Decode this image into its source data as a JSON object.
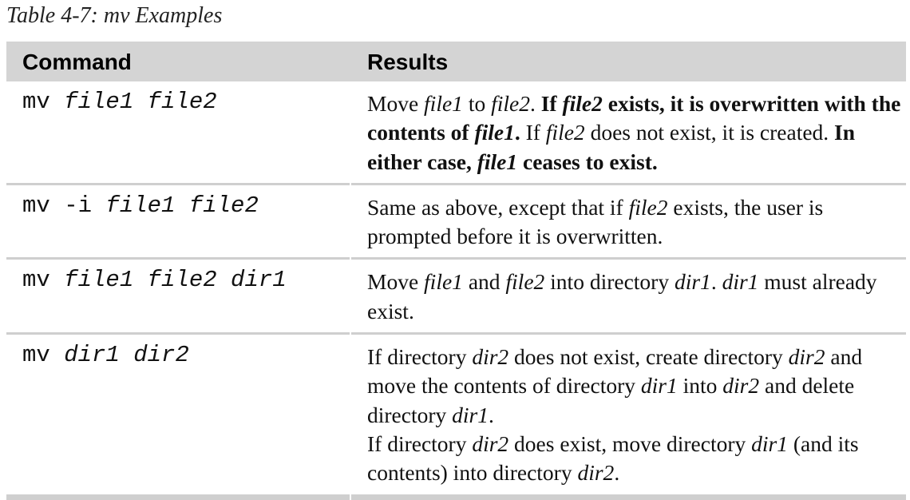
{
  "caption": "Table 4-7: mv Examples",
  "headers": {
    "command": "Command",
    "results": "Results"
  },
  "rows": [
    {
      "cmd_prefix": "mv ",
      "cmd_args": "file1 file2",
      "result": [
        {
          "t": "Move "
        },
        {
          "t": "file1",
          "i": true
        },
        {
          "t": " to "
        },
        {
          "t": "file2",
          "i": true
        },
        {
          "t": ". "
        },
        {
          "t": "If ",
          "b": true
        },
        {
          "t": "file2",
          "b": true,
          "i": true
        },
        {
          "t": " exists, it is overwritten with the contents of ",
          "b": true
        },
        {
          "t": "file1",
          "b": true,
          "i": true
        },
        {
          "t": ".",
          "b": true
        },
        {
          "t": " If "
        },
        {
          "t": "file2",
          "i": true
        },
        {
          "t": " does not exist, it is created. "
        },
        {
          "t": "In either case, ",
          "b": true
        },
        {
          "t": "file1",
          "b": true,
          "i": true
        },
        {
          "t": " ceases to exist.",
          "b": true
        }
      ]
    },
    {
      "cmd_prefix": "mv -i ",
      "cmd_args": "file1 file2",
      "result": [
        {
          "t": "Same as above, except that if "
        },
        {
          "t": "file2",
          "i": true
        },
        {
          "t": " exists, the user is prompted before it is overwritten."
        }
      ]
    },
    {
      "cmd_prefix": "mv ",
      "cmd_args": "file1 file2 dir1",
      "result": [
        {
          "t": "Move "
        },
        {
          "t": "file1",
          "i": true
        },
        {
          "t": " and "
        },
        {
          "t": "file2",
          "i": true
        },
        {
          "t": " into directory "
        },
        {
          "t": "dir1",
          "i": true
        },
        {
          "t": ". "
        },
        {
          "t": "dir1",
          "i": true
        },
        {
          "t": " must already exist."
        }
      ]
    },
    {
      "cmd_prefix": "mv ",
      "cmd_args": "dir1 dir2",
      "result": [
        {
          "t": "If directory "
        },
        {
          "t": "dir2",
          "i": true
        },
        {
          "t": " does not exist, create directory "
        },
        {
          "t": "dir2",
          "i": true
        },
        {
          "t": " and move the contents of directory "
        },
        {
          "t": "dir1",
          "i": true
        },
        {
          "t": " into "
        },
        {
          "t": "dir2",
          "i": true
        },
        {
          "t": " and delete directory "
        },
        {
          "t": "dir1",
          "i": true
        },
        {
          "t": "."
        },
        {
          "br": true
        },
        {
          "t": "If directory "
        },
        {
          "t": "dir2",
          "i": true
        },
        {
          "t": " does exist, move directory "
        },
        {
          "t": "dir1",
          "i": true
        },
        {
          "t": " (and its contents) into directory "
        },
        {
          "t": "dir2",
          "i": true
        },
        {
          "t": "."
        }
      ]
    }
  ]
}
